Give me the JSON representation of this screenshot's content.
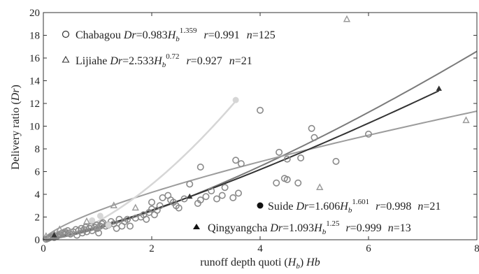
{
  "chart_data": {
    "type": "scatter",
    "xlabel": "runoff depth quoti (H_b) Hb",
    "xlabel_parts": {
      "main": "runoff depth quoti (",
      "var": "H",
      "sub": "b",
      "close": ")  ",
      "tail": "Hb"
    },
    "ylabel": "Delivery ratio (Dr)",
    "ylabel_parts": {
      "main": "Delivery ratio (",
      "var": "Dr",
      "close": ")"
    },
    "xlim": [
      0,
      8
    ],
    "ylim": [
      0,
      20
    ],
    "x_ticks": [
      0,
      2,
      4,
      6,
      8
    ],
    "y_ticks": [
      0,
      2,
      4,
      6,
      8,
      10,
      12,
      14,
      16,
      18,
      20
    ],
    "grid": false,
    "colors": {
      "chabagou": "#8a8a8a",
      "lijiahe": "#9a9a9a",
      "suide": "#d6d6d6",
      "qingyangcha": "#333333",
      "chabagou_fit": "#7a7a7a",
      "lijiahe_fit": "#9c9c9c"
    },
    "legend": [
      {
        "id": "chabagou",
        "marker": "circle-open",
        "name": "Chabagou",
        "eq_var": "Dr",
        "eq_eq": "=0.983",
        "eq_H": "H",
        "eq_sub": "b",
        "eq_exp": "1.359",
        "r": "r",
        "r_val": "=0.991",
        "n": "n",
        "n_val": "=125"
      },
      {
        "id": "lijiahe",
        "marker": "triangle-open",
        "name": "Lijiahe",
        "eq_var": "Dr",
        "eq_eq": "=2.533",
        "eq_H": "H",
        "eq_sub": "b",
        "eq_exp": "0.72",
        "r": "r",
        "r_val": "=0.927",
        "n": "n",
        "n_val": "=21"
      },
      {
        "id": "suide",
        "marker": "circle-filled",
        "name": "Suide",
        "eq_var": "Dr",
        "eq_eq": "=1.606",
        "eq_H": "H",
        "eq_sub": "b",
        "eq_exp": "1.601",
        "r": "r",
        "r_val": "=0.998",
        "n": "n",
        "n_val": "=21"
      },
      {
        "id": "qingyangcha",
        "marker": "triangle-filled",
        "name": "Qingyangcha",
        "eq_var": "Dr",
        "eq_eq": "=1.093",
        "eq_H": "H",
        "eq_sub": "b",
        "eq_exp": "1.25",
        "r": "r",
        "r_val": "=0.999",
        "n": "n",
        "n_val": "=13"
      }
    ],
    "series": [
      {
        "name": "Chabagou",
        "marker": "circle-open",
        "points": [
          [
            0.05,
            0.05
          ],
          [
            0.08,
            0.1
          ],
          [
            0.1,
            0.15
          ],
          [
            0.12,
            0.2
          ],
          [
            0.15,
            0.25
          ],
          [
            0.18,
            0.3
          ],
          [
            0.2,
            0.2
          ],
          [
            0.22,
            0.35
          ],
          [
            0.25,
            0.3
          ],
          [
            0.28,
            0.4
          ],
          [
            0.3,
            0.5
          ],
          [
            0.32,
            0.45
          ],
          [
            0.35,
            0.6
          ],
          [
            0.38,
            0.5
          ],
          [
            0.4,
            0.7
          ],
          [
            0.42,
            0.55
          ],
          [
            0.45,
            0.8
          ],
          [
            0.48,
            0.6
          ],
          [
            0.5,
            0.5
          ],
          [
            0.55,
            0.7
          ],
          [
            0.6,
            0.9
          ],
          [
            0.62,
            0.4
          ],
          [
            0.65,
            0.8
          ],
          [
            0.7,
            1.0
          ],
          [
            0.72,
            0.6
          ],
          [
            0.75,
            0.9
          ],
          [
            0.78,
            1.1
          ],
          [
            0.8,
            0.7
          ],
          [
            0.85,
            1.0
          ],
          [
            0.88,
            1.2
          ],
          [
            0.9,
            0.8
          ],
          [
            0.95,
            1.1
          ],
          [
            0.98,
            1.3
          ],
          [
            1.0,
            1.0
          ],
          [
            1.02,
            0.6
          ],
          [
            1.05,
            1.2
          ],
          [
            1.08,
            1.4
          ],
          [
            1.1,
            1.5
          ],
          [
            1.15,
            1.2
          ],
          [
            1.2,
            1.3
          ],
          [
            1.25,
            1.6
          ],
          [
            1.3,
            1.4
          ],
          [
            1.35,
            1.0
          ],
          [
            1.4,
            1.8
          ],
          [
            1.45,
            1.2
          ],
          [
            1.5,
            1.6
          ],
          [
            1.55,
            1.8
          ],
          [
            1.6,
            1.2
          ],
          [
            1.7,
            1.9
          ],
          [
            1.8,
            2.0
          ],
          [
            1.85,
            2.2
          ],
          [
            1.9,
            1.8
          ],
          [
            1.95,
            2.4
          ],
          [
            2.0,
            2.7
          ],
          [
            2.0,
            3.3
          ],
          [
            2.05,
            2.2
          ],
          [
            2.1,
            2.6
          ],
          [
            2.15,
            3.0
          ],
          [
            2.2,
            3.7
          ],
          [
            2.3,
            3.9
          ],
          [
            2.35,
            3.5
          ],
          [
            2.4,
            3.3
          ],
          [
            2.45,
            3.0
          ],
          [
            2.5,
            2.8
          ],
          [
            2.6,
            3.6
          ],
          [
            2.7,
            4.9
          ],
          [
            2.85,
            3.2
          ],
          [
            2.9,
            3.5
          ],
          [
            2.9,
            6.4
          ],
          [
            3.0,
            3.8
          ],
          [
            3.1,
            4.3
          ],
          [
            3.2,
            3.6
          ],
          [
            3.3,
            3.9
          ],
          [
            3.35,
            4.6
          ],
          [
            3.5,
            3.7
          ],
          [
            3.55,
            7.0
          ],
          [
            3.6,
            4.1
          ],
          [
            3.65,
            6.7
          ],
          [
            4.0,
            11.4
          ],
          [
            4.3,
            5.0
          ],
          [
            4.35,
            7.7
          ],
          [
            4.45,
            5.4
          ],
          [
            4.5,
            7.1
          ],
          [
            4.5,
            5.3
          ],
          [
            4.7,
            5.0
          ],
          [
            4.75,
            7.2
          ],
          [
            4.95,
            9.8
          ],
          [
            5.0,
            9.0
          ],
          [
            5.4,
            6.9
          ],
          [
            6.0,
            9.3
          ]
        ]
      },
      {
        "name": "Lijiahe",
        "marker": "triangle-open",
        "points": [
          [
            0.05,
            0.3
          ],
          [
            0.2,
            0.5
          ],
          [
            0.3,
            0.9
          ],
          [
            0.5,
            0.6
          ],
          [
            0.8,
            1.6
          ],
          [
            1.0,
            1.1
          ],
          [
            1.3,
            3.0
          ],
          [
            1.7,
            2.8
          ],
          [
            5.1,
            4.6
          ],
          [
            5.6,
            19.4
          ],
          [
            7.8,
            10.5
          ]
        ]
      },
      {
        "name": "Suide",
        "marker": "circle-filled",
        "points": [
          [
            0.9,
            1.7
          ],
          [
            1.05,
            2.1
          ],
          [
            1.2,
            1.3
          ],
          [
            3.55,
            12.3
          ]
        ]
      },
      {
        "name": "Qingyangcha",
        "marker": "triangle-filled",
        "points": [
          [
            0.2,
            0.4
          ],
          [
            2.7,
            3.8
          ],
          [
            7.3,
            13.3
          ]
        ]
      }
    ],
    "fits": [
      {
        "name": "Chabagou",
        "a": 0.983,
        "b": 1.359,
        "x_range": [
          0,
          8
        ]
      },
      {
        "name": "Lijiahe",
        "a": 2.533,
        "b": 0.72,
        "x_range": [
          0,
          8
        ]
      },
      {
        "name": "Suide",
        "a": 1.606,
        "b": 1.601,
        "x_range": [
          0,
          3.55
        ]
      },
      {
        "name": "Qingyangcha",
        "a": 1.093,
        "b": 1.25,
        "x_range": [
          0,
          7.3
        ]
      }
    ]
  }
}
